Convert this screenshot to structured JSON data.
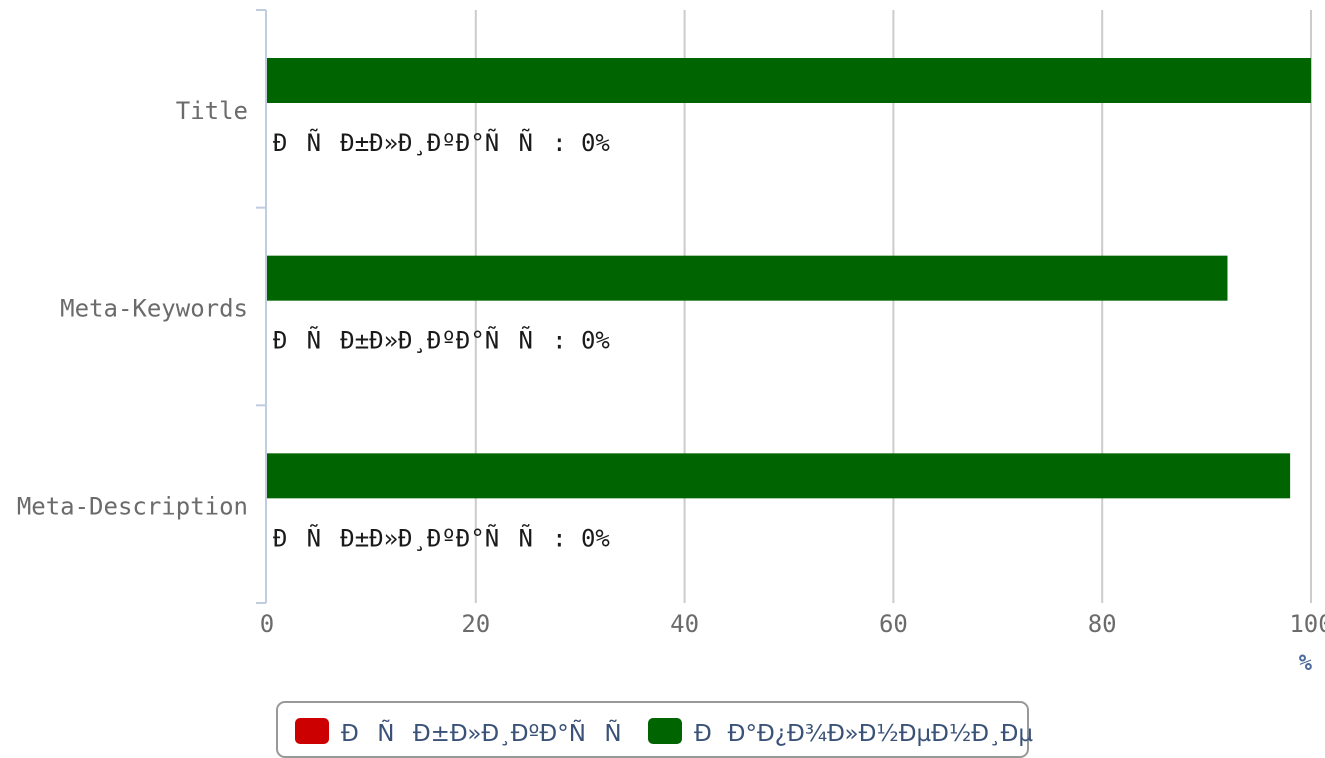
{
  "chart_data": {
    "type": "bar",
    "orientation": "horizontal",
    "categories": [
      "Title",
      "Meta-Keywords",
      "Meta-Description"
    ],
    "series": [
      {
        "name": "ÐÑÐ±Ð»Ð¸ÐºÐ°ÑÑ",
        "color": "#cc0000",
        "values": [
          0,
          0,
          0
        ]
      },
      {
        "name": "ÐÐ°Ð¿Ð¾Ð»Ð½ÐµÐ½Ð¸Ðµ",
        "color": "#006400",
        "values": [
          100,
          92,
          98
        ]
      }
    ],
    "data_labels": [
      "ÐÑÐ±Ð»Ð¸ÐºÐ°ÑÑ: 0%",
      "ÐÑÐ±Ð»Ð¸ÐºÐ°ÑÑ: 0%",
      "ÐÑÐ±Ð»Ð¸ÐºÐ°ÑÑ: 0%"
    ],
    "x_ticks": [
      0,
      20,
      40,
      60,
      80,
      100
    ],
    "x_unit": "%",
    "xlim": [
      0,
      100
    ],
    "grid": true,
    "legend_position": "bottom-center",
    "colors": {
      "grid": "#cccccc",
      "axis": "#c0cce0",
      "legend_border": "#999999"
    }
  }
}
